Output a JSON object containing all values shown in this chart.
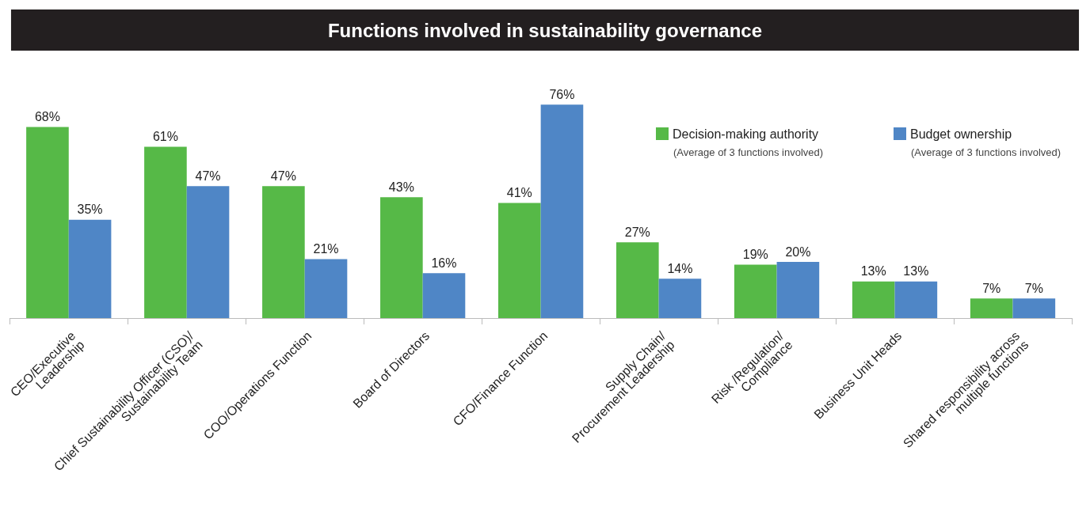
{
  "chart_data": {
    "type": "bar",
    "title": "Functions involved in sustainability governance",
    "categories": [
      "CEO/Executive\nLeadership",
      "Chief Sustainability Officer (CSO)/\nSustainability Team",
      "COO/Operations Function",
      "Board of Directors",
      "CFO/Finance Function",
      "Supply Chain/\nProcurement Leadership",
      "Risk /Regulation/\nCompliance",
      "Business Unit Heads",
      "Shared responsibility across\nmultiple functions"
    ],
    "series": [
      {
        "name": "Decision-making authority",
        "color": "#56b947",
        "values": [
          68,
          61,
          47,
          43,
          41,
          27,
          19,
          13,
          7
        ],
        "value_labels": [
          "68%",
          "61%",
          "47%",
          "43%",
          "41%",
          "27%",
          "19%",
          "13%",
          "7%"
        ]
      },
      {
        "name": "Budget ownership",
        "color": "#4f86c6",
        "values": [
          35,
          47,
          21,
          16,
          76,
          14,
          20,
          13,
          7
        ],
        "value_labels": [
          "35%",
          "47%",
          "21%",
          "16%",
          "76%",
          "14%",
          "20%",
          "13%",
          "7%"
        ]
      }
    ],
    "annotations": [
      "(Average of 3 functions involved)",
      "(Average of 3 functions involved)"
    ],
    "grid": false,
    "legend": "top right"
  }
}
